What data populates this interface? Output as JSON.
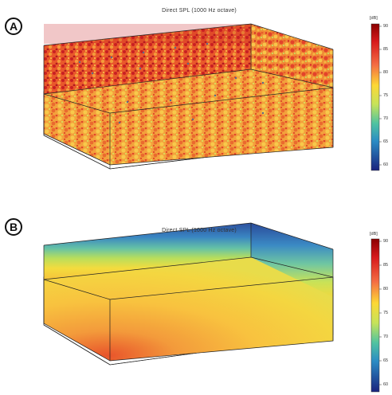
{
  "panels": [
    {
      "letter": "A",
      "title": "Direct SPL (1000 Hz octave)",
      "colorbar": {
        "unit": "[dB]",
        "ticks": [
          "90",
          "85",
          "80",
          "75",
          "70",
          "65",
          "60"
        ]
      }
    },
    {
      "letter": "B",
      "title": "Direct SPL (1000 Hz octave)",
      "colorbar": {
        "unit": "[dB]",
        "ticks": [
          "90",
          "85",
          "80",
          "75",
          "70",
          "65",
          "60"
        ]
      }
    }
  ],
  "colors": {
    "scale": [
      "#8b0000",
      "#d7191c",
      "#f46d43",
      "#fdae61",
      "#fee08b",
      "#d9ef8b",
      "#66c2a5",
      "#3288bd",
      "#253494",
      "#1a1a6e"
    ],
    "box_outline": "#222222"
  }
}
